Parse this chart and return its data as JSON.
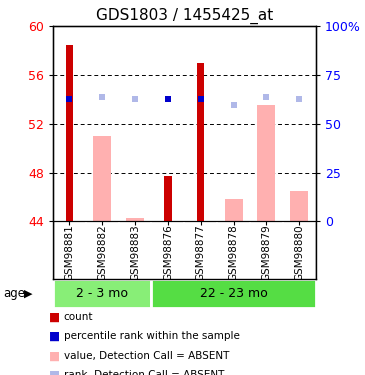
{
  "title": "GDS1803 / 1455425_at",
  "samples": [
    "GSM98881",
    "GSM98882",
    "GSM98883",
    "GSM98876",
    "GSM98877",
    "GSM98878",
    "GSM98879",
    "GSM98880"
  ],
  "red_bars": [
    58.5,
    null,
    null,
    47.7,
    57.0,
    null,
    null,
    null
  ],
  "pink_bars": [
    null,
    51.0,
    44.3,
    null,
    null,
    45.8,
    53.5,
    46.5
  ],
  "blue_squares": [
    54.0,
    null,
    null,
    54.0,
    54.0,
    null,
    null,
    null
  ],
  "lavender_squares": [
    null,
    54.2,
    54.0,
    null,
    null,
    53.5,
    54.2,
    54.0
  ],
  "bar_bottom": 44,
  "ylim": [
    44,
    60
  ],
  "yticks_left": [
    44,
    48,
    52,
    56,
    60
  ],
  "right_pct": [
    0,
    25,
    50,
    75,
    100
  ],
  "right_labels": [
    "0",
    "25",
    "50",
    "75",
    "100%"
  ],
  "red_color": "#cc0000",
  "pink_color": "#ffb0b0",
  "blue_color": "#0000cc",
  "lavender_color": "#b0b8e8",
  "sample_header_color": "#d3d3d3",
  "group1_color": "#88ee77",
  "group2_color": "#55dd44",
  "group1_label": "2 - 3 mo",
  "group1_n": 3,
  "group2_label": "22 - 23 mo",
  "group2_n": 5,
  "legend_items": [
    {
      "color": "#cc0000",
      "label": "count"
    },
    {
      "color": "#0000cc",
      "label": "percentile rank within the sample"
    },
    {
      "color": "#ffb0b0",
      "label": "value, Detection Call = ABSENT"
    },
    {
      "color": "#b0b8e8",
      "label": "rank, Detection Call = ABSENT"
    }
  ]
}
